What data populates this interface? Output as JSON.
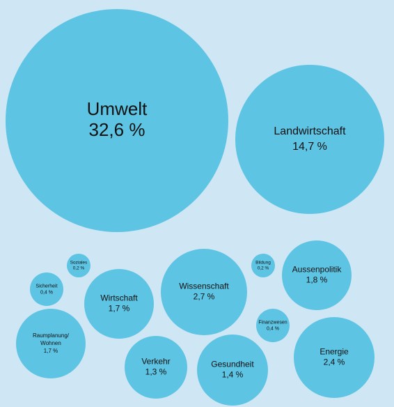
{
  "chart_data": {
    "type": "bubble",
    "bubble_color": "#5ec4e3",
    "background_color": "#cfe6f4",
    "unit": "%",
    "items": [
      {
        "category": "Umwelt",
        "value": 32.6,
        "value_label": "32,6 %"
      },
      {
        "category": "Landwirtschaft",
        "value": 14.7,
        "value_label": "14,7 %"
      },
      {
        "category": "Wissenschaft",
        "value": 2.7,
        "value_label": "2,7 %"
      },
      {
        "category": "Energie",
        "value": 2.4,
        "value_label": "2,4 %"
      },
      {
        "category": "Aussenpolitik",
        "value": 1.8,
        "value_label": "1,8 %"
      },
      {
        "category": "Wirtschaft",
        "value": 1.7,
        "value_label": "1,7 %"
      },
      {
        "category": "Raumplanung/\nWohnen",
        "value": 1.7,
        "value_label": "1,7 %"
      },
      {
        "category": "Gesundheit",
        "value": 1.4,
        "value_label": "1,4 %"
      },
      {
        "category": "Verkehr",
        "value": 1.3,
        "value_label": "1,3 %"
      },
      {
        "category": "Sicherheit",
        "value": 0.4,
        "value_label": "0,4 %"
      },
      {
        "category": "Finanzwesen",
        "value": 0.4,
        "value_label": "0,4 %"
      },
      {
        "category": "Soziales",
        "value": 0.2,
        "value_label": "0,2 %"
      },
      {
        "category": "Bildung",
        "value": 0.2,
        "value_label": "0,2 %"
      }
    ]
  }
}
